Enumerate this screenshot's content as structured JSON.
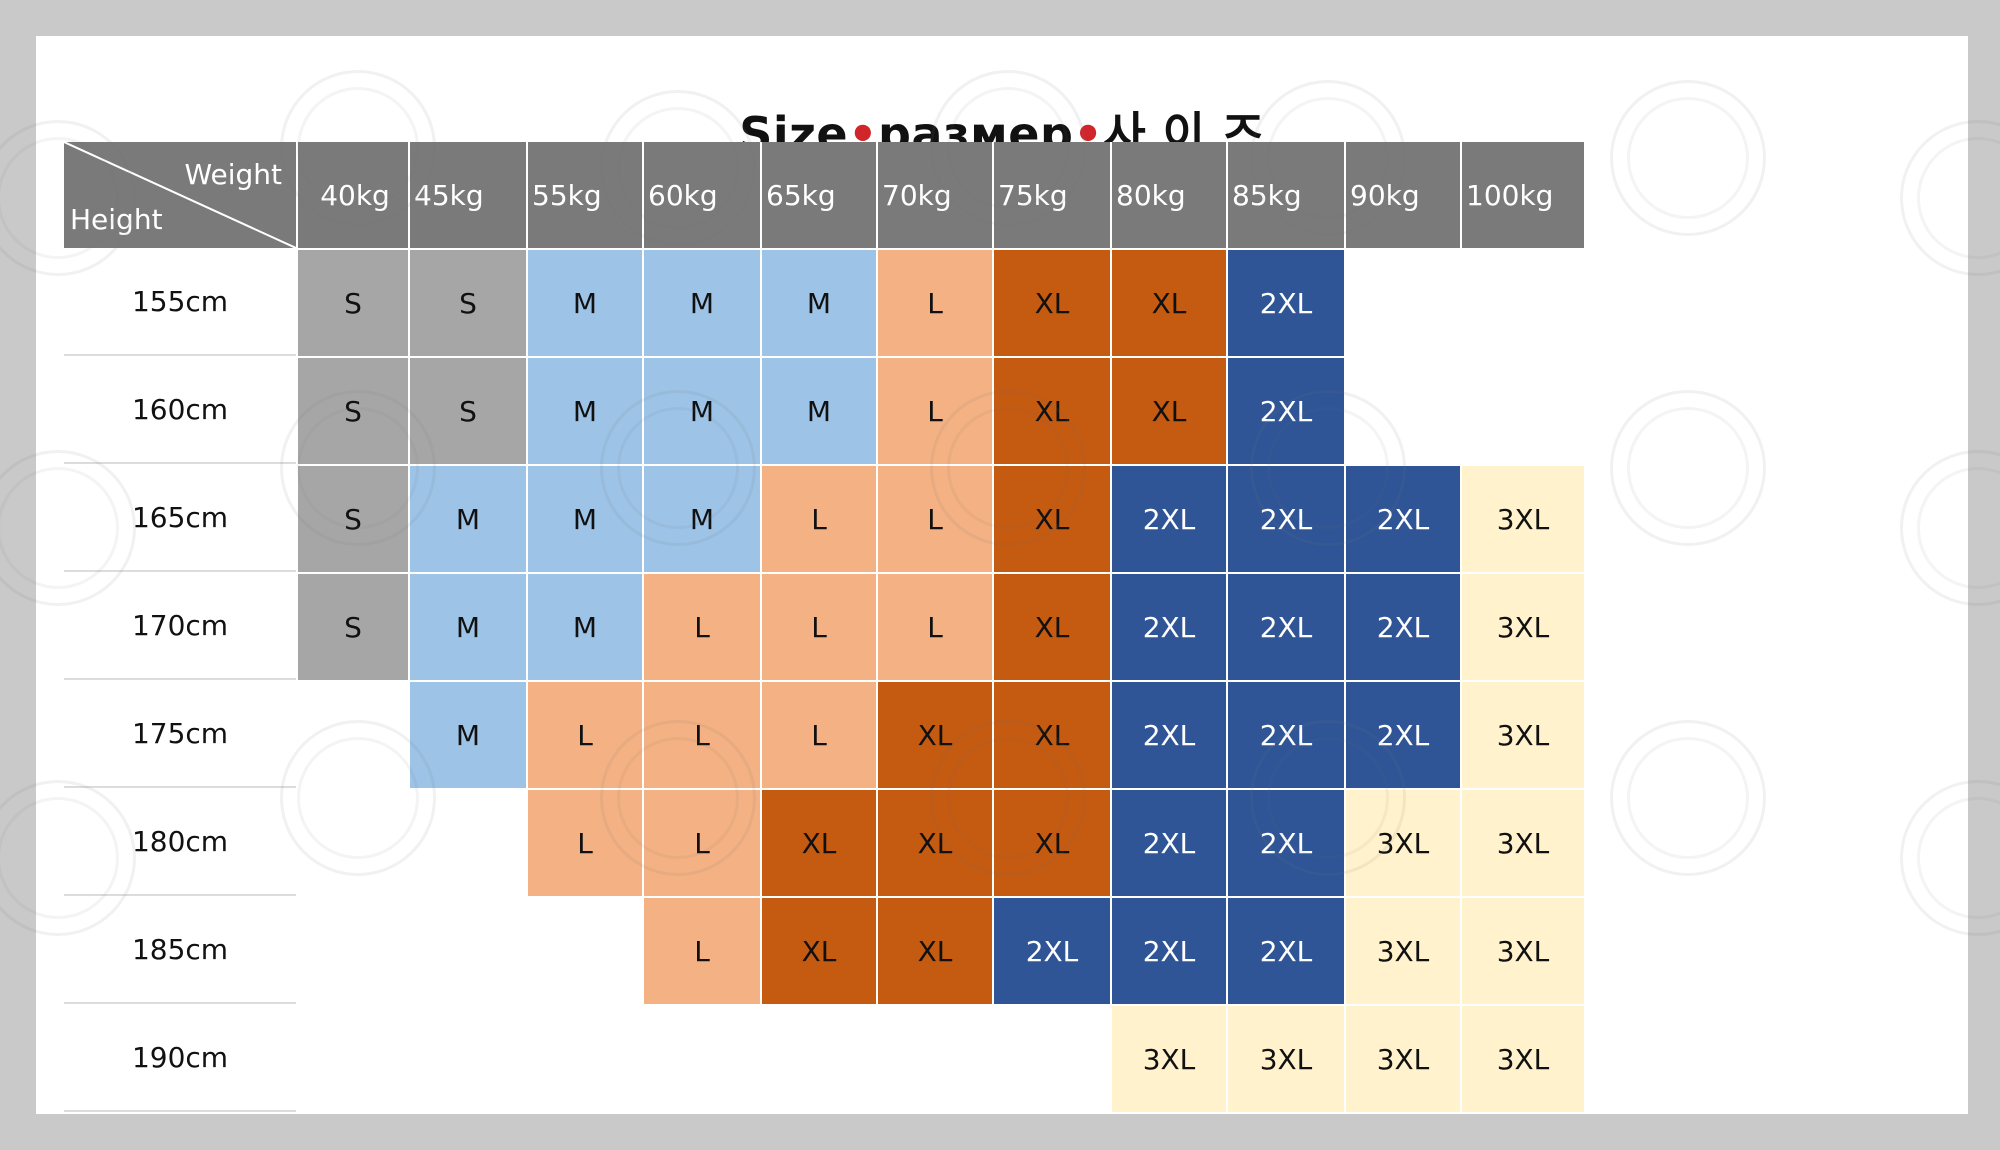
{
  "title": {
    "part1": "Size",
    "part2": "размер",
    "part3": "사 이 즈",
    "separator": "•",
    "separator_color": "#d0262b"
  },
  "corner": {
    "weight_label": "Weight",
    "height_label": "Height"
  },
  "weights": [
    "40kg",
    "45kg",
    "55kg",
    "60kg",
    "65kg",
    "70kg",
    "75kg",
    "80kg",
    "85kg",
    "90kg",
    "100kg"
  ],
  "heights": [
    "155cm",
    "160cm",
    "165cm",
    "170cm",
    "175cm",
    "180cm",
    "185cm",
    "190cm"
  ],
  "grid": [
    [
      "S",
      "S",
      "M",
      "M",
      "M",
      "L",
      "XL",
      "XL",
      "2XL",
      "",
      ""
    ],
    [
      "S",
      "S",
      "M",
      "M",
      "M",
      "L",
      "XL",
      "XL",
      "2XL",
      "",
      ""
    ],
    [
      "S",
      "M",
      "M",
      "M",
      "L",
      "L",
      "XL",
      "2XL",
      "2XL",
      "2XL",
      "3XL"
    ],
    [
      "S",
      "M",
      "M",
      "L",
      "L",
      "L",
      "XL",
      "2XL",
      "2XL",
      "2XL",
      "3XL"
    ],
    [
      "",
      "M",
      "L",
      "L",
      "L",
      "XL",
      "XL",
      "2XL",
      "2XL",
      "2XL",
      "3XL"
    ],
    [
      "",
      "",
      "L",
      "L",
      "XL",
      "XL",
      "XL",
      "2XL",
      "2XL",
      "3XL",
      "3XL"
    ],
    [
      "",
      "",
      "",
      "L",
      "XL",
      "XL",
      "2XL",
      "2XL",
      "2XL",
      "3XL",
      "3XL"
    ],
    [
      "",
      "",
      "",
      "",
      "",
      "",
      "",
      "3XL",
      "3XL",
      "3XL",
      "3XL"
    ]
  ],
  "size_colors": {
    "S": {
      "bg": "#a6a6a6",
      "fg": "#111111"
    },
    "M": {
      "bg": "#9dc3e6",
      "fg": "#111111"
    },
    "L": {
      "bg": "#f4b183",
      "fg": "#111111"
    },
    "XL": {
      "bg": "#c55a11",
      "fg": "#111111"
    },
    "2XL": {
      "bg": "#2f5597",
      "fg": "#ffffff"
    },
    "3XL": {
      "bg": "#fff2cc",
      "fg": "#111111"
    }
  },
  "header_color": "#7a7a7a"
}
